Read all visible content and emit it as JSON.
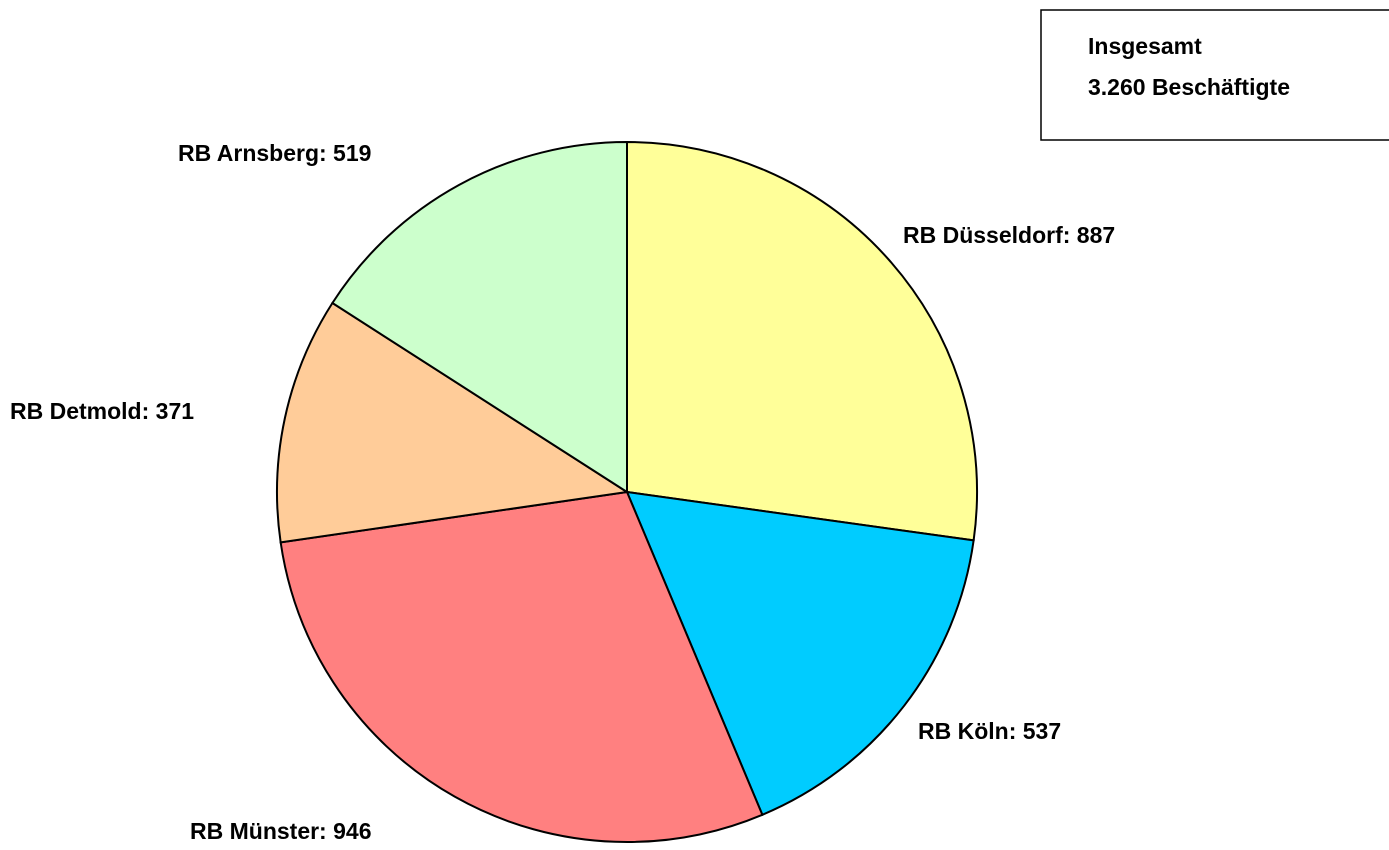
{
  "chart_data": {
    "type": "pie",
    "values": [
      887,
      537,
      946,
      371,
      519
    ],
    "value_labels": [
      "RB Düsseldorf: 887",
      "RB Köln: 537",
      "RB Münster: 946",
      "RB Detmold: 371",
      "RB Arnsberg: 519"
    ],
    "colors": [
      "#ffff99",
      "#00ccff",
      "#ff8080",
      "#ffcc99",
      "#ccffcc"
    ],
    "annotation": [
      "Insgesamt",
      "3.260 Beschäftigte"
    ]
  }
}
